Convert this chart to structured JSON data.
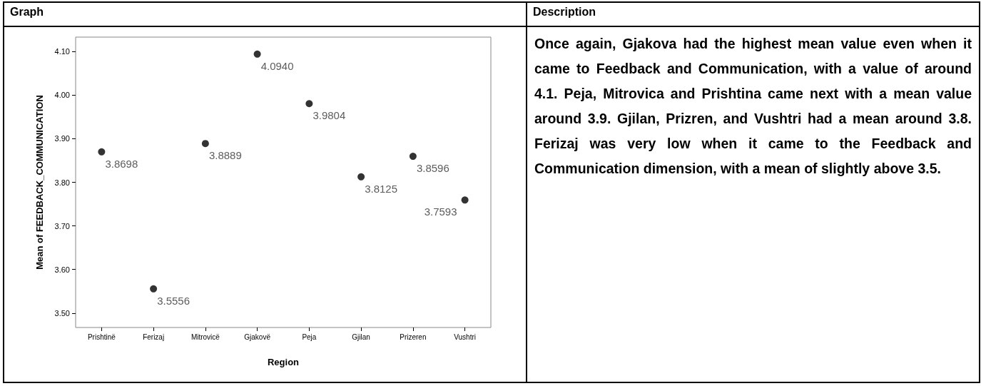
{
  "chart_data": {
    "type": "scatter",
    "xlabel": "Region",
    "ylabel": "Mean of FEEDBACK_COMMUNICATION",
    "categories": [
      "Prishtinë",
      "Ferizaj",
      "Mitrovicë",
      "Gjakovë",
      "Peja",
      "Gjilan",
      "Prizeren",
      "Vushtri"
    ],
    "values": [
      3.8698,
      3.5556,
      3.8889,
      4.094,
      3.9804,
      3.8125,
      3.8596,
      3.7593
    ],
    "value_labels": [
      "3.8698",
      "3.5556",
      "3.8889",
      "4.0940",
      "3.9804",
      "3.8125",
      "3.8596",
      "3.7593"
    ],
    "color": "#000000",
    "marker": "circle",
    "ylim": [
      3.467,
      4.133
    ],
    "yticks": [
      {
        "value": 3.5,
        "label": "3.50"
      },
      {
        "value": 3.6,
        "label": "3.60"
      },
      {
        "value": 3.7,
        "label": "3.70"
      },
      {
        "value": 3.8,
        "label": "3.80"
      },
      {
        "value": 3.9,
        "label": "3.90"
      },
      {
        "value": 4.0,
        "label": "4.00"
      },
      {
        "value": 4.1,
        "label": "4.10"
      }
    ],
    "grid": false,
    "annotations": [
      "Graph",
      "Description",
      "Once again, Gjakova had the highest mean value even when it came to Feedback and Communication, with a value of around 4.1. Peja, Mitrovica and Prishtina came next with a mean value around 3.9. Gjilan, Prizren, and Vushtri had a mean around 3.8. Ferizaj was very low when it came to the Feedback and Communication dimension, with a mean of slightly above 3.5."
    ]
  }
}
